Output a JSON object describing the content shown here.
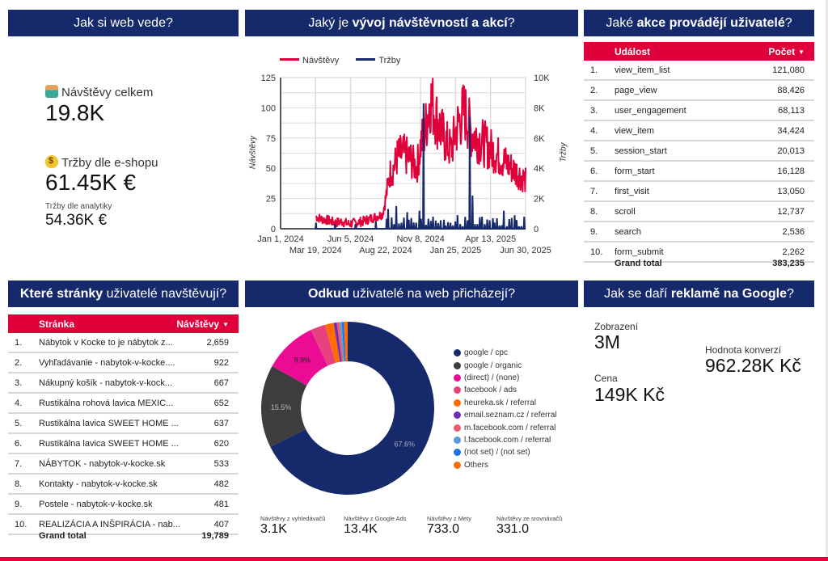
{
  "panels": {
    "overview": {
      "title": "Jak si web vede?",
      "visits_label": "Návštěvy celkem",
      "visits_value": "19.8K",
      "eshop_revenue_label": "Tržby dle e-shopu",
      "eshop_revenue_value": "61.45K €",
      "analytics_revenue_label": "Tržby dle analytiky",
      "analytics_revenue_value": "54.36K €"
    },
    "trend": {
      "title_pre": "Jaký je ",
      "title_bold": "vývoj návštěvností a akcí",
      "title_post": "?"
    },
    "events": {
      "title_pre": "Jaké ",
      "title_bold": "akce provádějí uživatelé",
      "title_post": "?",
      "col_name": "Událost",
      "col_value": "Počet",
      "sort_icon": "▼",
      "rows": [
        {
          "idx": "1.",
          "name": "view_item_list",
          "value": "121,080"
        },
        {
          "idx": "2.",
          "name": "page_view",
          "value": "88,426"
        },
        {
          "idx": "3.",
          "name": "user_engagement",
          "value": "68,113"
        },
        {
          "idx": "4.",
          "name": "view_item",
          "value": "34,424"
        },
        {
          "idx": "5.",
          "name": "session_start",
          "value": "20,013"
        },
        {
          "idx": "6.",
          "name": "form_start",
          "value": "16,128"
        },
        {
          "idx": "7.",
          "name": "first_visit",
          "value": "13,050"
        },
        {
          "idx": "8.",
          "name": "scroll",
          "value": "12,737"
        },
        {
          "idx": "9.",
          "name": "search",
          "value": "2,536"
        },
        {
          "idx": "10.",
          "name": "form_submit",
          "value": "2,262"
        }
      ],
      "total_label": "Grand total",
      "total_value": "383,235"
    },
    "pages": {
      "title_bold": "Které stránky",
      "title_post": " uživatelé navštěvují?",
      "col_name": "Stránka",
      "col_value": "Návštěvy",
      "sort_icon": "▼",
      "rows": [
        {
          "idx": "1.",
          "name": "Nábytok v Kocke to je nábytok z...",
          "value": "2,659"
        },
        {
          "idx": "2.",
          "name": "Vyhľadávanie - nabytok-v-kocke....",
          "value": "922"
        },
        {
          "idx": "3.",
          "name": "Nákupný košík - nabytok-v-kock...",
          "value": "667"
        },
        {
          "idx": "4.",
          "name": "Rustikálna rohová lavica MEXIC...",
          "value": "652"
        },
        {
          "idx": "5.",
          "name": "Rustikálna lavica SWEET HOME ...",
          "value": "637"
        },
        {
          "idx": "6.",
          "name": "Rustikálna lavica SWEET HOME ...",
          "value": "620"
        },
        {
          "idx": "7.",
          "name": "NÁBYTOK - nabytok-v-kocke.sk",
          "value": "533"
        },
        {
          "idx": "8.",
          "name": "Kontakty - nabytok-v-kocke.sk",
          "value": "482"
        },
        {
          "idx": "9.",
          "name": "Postele - nabytok-v-kocke.sk",
          "value": "481"
        },
        {
          "idx": "10.",
          "name": "REALIZÁCIA A INŠPIRÁCIA - nab...",
          "value": "407"
        }
      ],
      "total_label": "Grand total",
      "total_value": "19,789"
    },
    "sources": {
      "title_bold": "Odkud",
      "title_post": " uživatelé na web přicházejí?",
      "kpis": [
        {
          "label": "Návštěvy z vyhledávačů",
          "value": "3.1K"
        },
        {
          "label": "Návštěvy z Google Ads",
          "value": "13.4K"
        },
        {
          "label": "Návštěvy z Mety",
          "value": "733.0"
        },
        {
          "label": "Návštěvy ze srovnávačů",
          "value": "331.0"
        }
      ]
    },
    "ads": {
      "title_pre": "Jak se daří ",
      "title_bold": "reklamě na Google",
      "title_post": "?",
      "impressions_label": "Zobrazení",
      "impressions_value": "3M",
      "cost_label": "Cena",
      "cost_value": "149K Kč",
      "conv_label": "Hodnota konverzí",
      "conv_value": "962.28K Kč"
    }
  },
  "icons": {
    "visits": "person-raising-hand-icon",
    "revenue": "money-bag-icon"
  },
  "colors": {
    "header_bg": "#16296b",
    "accent_red": "#e0003a",
    "visits_line": "#e0003a",
    "revenue_line": "#16296b"
  },
  "chart_data": [
    {
      "type": "line",
      "title": "",
      "legend": [
        "Návštěvy",
        "Tržby"
      ],
      "legend_position": "top-left",
      "xlabel": "",
      "ylabel": "Návštěvy",
      "y2label": "Tržby",
      "ylim": [
        0,
        125
      ],
      "y2lim": [
        0,
        10000
      ],
      "yticks": [
        "0",
        "25",
        "50",
        "75",
        "100",
        "125"
      ],
      "y2ticks": [
        "0",
        "2K",
        "4K",
        "6K",
        "8K",
        "10K"
      ],
      "xticks_row1": [
        "Jan 1, 2024",
        "Jun 5, 2024",
        "Nov 8, 2024",
        "Apr 13, 2025"
      ],
      "xticks_row2": [
        "Mar 19, 2024",
        "Aug 22, 2024",
        "Jan 25, 2025",
        "Jun 30, 2025"
      ],
      "grid": true,
      "series": [
        {
          "name": "Návštěvy",
          "axis": "left",
          "x_month_index": [
            2.6,
            3,
            3.5,
            4,
            4.5,
            5,
            5.5,
            6,
            6.5,
            7,
            7.5,
            7.8,
            8,
            8.3,
            8.6,
            9,
            9.5,
            10,
            10.3,
            10.6,
            11,
            11.5,
            12,
            12.5,
            13,
            13.5,
            14,
            14.5,
            15,
            15.5,
            16,
            16.5,
            17,
            17.5,
            18
          ],
          "values": [
            10,
            8,
            7,
            5,
            6,
            4,
            5,
            6,
            8,
            10,
            12,
            30,
            45,
            50,
            60,
            62,
            58,
            50,
            70,
            80,
            108,
            90,
            75,
            65,
            85,
            98,
            80,
            75,
            70,
            65,
            60,
            55,
            50,
            45,
            40
          ]
        },
        {
          "name": "Tržby",
          "axis": "right",
          "x_month_index": [
            2.6,
            4,
            5.5,
            7,
            7.9,
            8.5,
            9.3,
            10.2,
            10.5,
            11.2,
            12,
            13,
            13.9,
            14.1,
            14.8,
            15.6,
            16.4,
            17.2,
            17.9
          ],
          "values": [
            400,
            300,
            300,
            500,
            1300,
            1500,
            1100,
            1200,
            8300,
            800,
            600,
            900,
            7400,
            2200,
            800,
            700,
            1200,
            900,
            800
          ]
        }
      ]
    },
    {
      "type": "pie",
      "donut": true,
      "title": "",
      "legend_position": "right",
      "categories": [
        "google / cpc",
        "google / organic",
        "(direct) / (none)",
        "facebook / ads",
        "heureka.sk / referral",
        "email.seznam.cz / referral",
        "m.facebook.com / referral",
        "l.facebook.com / referral",
        "(not set) / (not set)",
        "Others"
      ],
      "values": [
        67.6,
        15.5,
        9.9,
        2.8,
        1.6,
        0.6,
        0.5,
        0.4,
        0.4,
        0.7
      ],
      "labels_shown": [
        "67.6%",
        "15.5%",
        "9.9%"
      ],
      "colors": [
        "#16296b",
        "#3d3d3f",
        "#ec0b94",
        "#e8417f",
        "#ff6d00",
        "#6e2fb5",
        "#ef5a6c",
        "#5b9ad8",
        "#1a73e8",
        "#ff6d00"
      ]
    }
  ]
}
